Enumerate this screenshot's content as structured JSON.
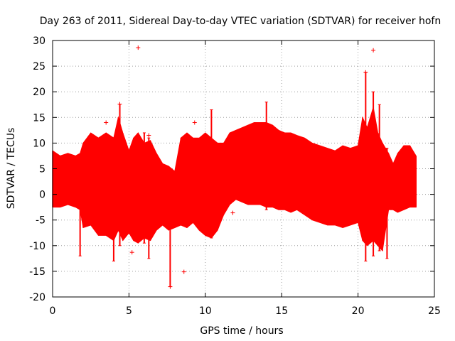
{
  "chart_data": {
    "type": "line",
    "title": "Day 263 of 2011, Sidereal Day-to-day VTEC variation (SDTVAR) for receiver hofn",
    "xlabel": "GPS time / hours",
    "ylabel": "SDTVAR / TECUs",
    "xlim": [
      0,
      25
    ],
    "ylim": [
      -20,
      30
    ],
    "xticks": [
      0,
      5,
      10,
      15,
      20,
      25
    ],
    "yticks": [
      -20,
      -15,
      -10,
      -5,
      0,
      5,
      10,
      15,
      20,
      25,
      30
    ],
    "xtick_labels": [
      "0",
      "5",
      "10",
      "15",
      "20",
      "25"
    ],
    "ytick_labels": [
      "-20",
      "-15",
      "-10",
      "-5",
      "0",
      "5",
      "10",
      "15",
      "20",
      "25",
      "30"
    ],
    "grid": true,
    "series_color": "#ff0000",
    "series": [
      {
        "name": "SDTVAR",
        "style": "points with error bars",
        "x": [
          0.0,
          0.5,
          1.0,
          1.5,
          1.8,
          2.0,
          2.5,
          3.0,
          3.5,
          4.0,
          4.3,
          4.6,
          5.0,
          5.3,
          5.6,
          6.0,
          6.4,
          6.8,
          7.2,
          7.6,
          8.0,
          8.4,
          8.8,
          9.2,
          9.6,
          10.0,
          10.4,
          10.8,
          11.2,
          11.6,
          12.0,
          12.4,
          12.8,
          13.2,
          13.6,
          14.0,
          14.4,
          14.8,
          15.2,
          15.6,
          16.0,
          16.5,
          17.0,
          17.5,
          18.0,
          18.5,
          19.0,
          19.5,
          20.0,
          20.3,
          20.6,
          21.0,
          21.3,
          21.6,
          22.0,
          22.3,
          22.6,
          23.0,
          23.4,
          23.8
        ],
        "upper": [
          8.5,
          7.5,
          8.0,
          7.5,
          8.0,
          10.0,
          12.0,
          11.0,
          12.0,
          11.0,
          15.0,
          12.0,
          8.5,
          11.0,
          12.0,
          10.0,
          10.5,
          8.0,
          6.0,
          5.5,
          4.5,
          11.0,
          12.0,
          11.0,
          11.0,
          12.0,
          11.0,
          10.0,
          10.0,
          12.0,
          12.5,
          13.0,
          13.5,
          14.0,
          14.0,
          14.0,
          13.5,
          12.5,
          12.0,
          12.0,
          11.5,
          11.0,
          10.0,
          9.5,
          9.0,
          8.5,
          9.5,
          9.0,
          9.5,
          15.0,
          13.0,
          17.0,
          12.0,
          10.0,
          8.0,
          6.0,
          8.0,
          9.5,
          9.5,
          7.5
        ],
        "lower": [
          -2.5,
          -2.5,
          -2.0,
          -2.5,
          -3.0,
          -6.5,
          -6.0,
          -8.0,
          -8.0,
          -9.0,
          -7.0,
          -9.0,
          -7.5,
          -9.0,
          -9.5,
          -8.5,
          -9.0,
          -7.0,
          -6.0,
          -7.0,
          -6.5,
          -6.0,
          -6.5,
          -5.5,
          -7.0,
          -8.0,
          -8.5,
          -7.0,
          -4.0,
          -2.0,
          -1.0,
          -1.5,
          -2.0,
          -2.0,
          -2.0,
          -2.5,
          -2.5,
          -3.0,
          -3.0,
          -3.5,
          -3.0,
          -4.0,
          -5.0,
          -5.5,
          -6.0,
          -6.0,
          -6.5,
          -6.0,
          -5.5,
          -9.0,
          -10.0,
          -9.0,
          -10.0,
          -11.0,
          -3.0,
          -3.0,
          -3.5,
          -3.0,
          -2.5,
          -2.5
        ]
      }
    ],
    "outliers": {
      "x": [
        5.6,
        21.0,
        20.5,
        7.7,
        8.6,
        5.2,
        11.8,
        3.5,
        4.4,
        6.3,
        9.3
      ],
      "y": [
        28.6,
        28.1,
        23.8,
        -18.0,
        -15.1,
        -11.3,
        -3.6,
        14.0,
        17.6,
        11.5,
        14.0
      ]
    },
    "spikes": {
      "x": [
        1.8,
        4.0,
        4.4,
        6.3,
        7.7,
        14.0,
        20.5,
        21.0,
        21.4,
        21.9,
        6.0,
        10.4
      ],
      "top": [
        -1.0,
        11.0,
        17.6,
        11.0,
        5.0,
        18.0,
        23.8,
        20.0,
        17.5,
        9.0,
        12.0,
        16.5
      ],
      "bot": [
        -12.0,
        -13.0,
        -10.0,
        -12.5,
        -18.0,
        -3.0,
        -13.0,
        -12.0,
        -11.0,
        -12.5,
        -9.5,
        -8.5
      ]
    }
  }
}
